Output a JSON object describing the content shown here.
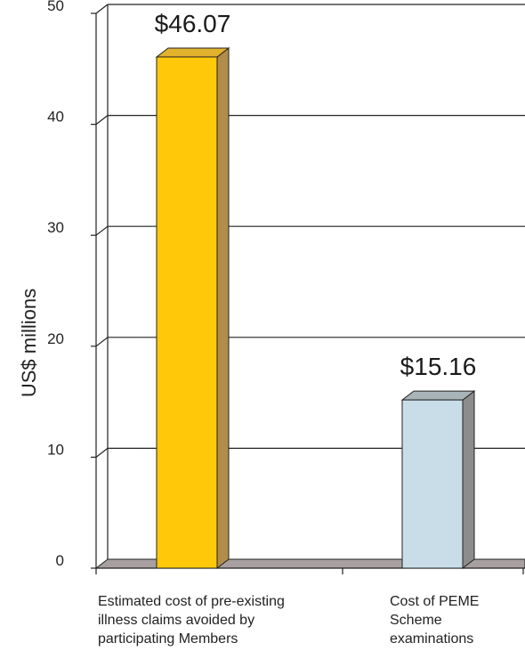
{
  "chart_data": {
    "type": "bar",
    "title": "",
    "xlabel": "",
    "ylabel": "US$ millions",
    "ylim": [
      0,
      50
    ],
    "yticks": [
      0,
      10,
      20,
      30,
      40,
      50
    ],
    "grid": true,
    "categories": [
      [
        "Estimated cost of pre-existing",
        "illness claims avoided by",
        "participating Members"
      ],
      [
        "Cost of PEME",
        "Scheme",
        "examinations"
      ]
    ],
    "values": [
      46.07,
      15.16
    ],
    "data_labels": [
      "$46.07",
      "$15.16"
    ],
    "colors": {
      "bar1_front": "#FFC90A",
      "bar1_top": "#E2B12E",
      "bar1_side": "#B28C4A",
      "bar2_front": "#C8DDE8",
      "bar2_top": "#A8B4B8",
      "bar2_side": "#8C8C8C",
      "floor": "#A8A0A0"
    }
  }
}
